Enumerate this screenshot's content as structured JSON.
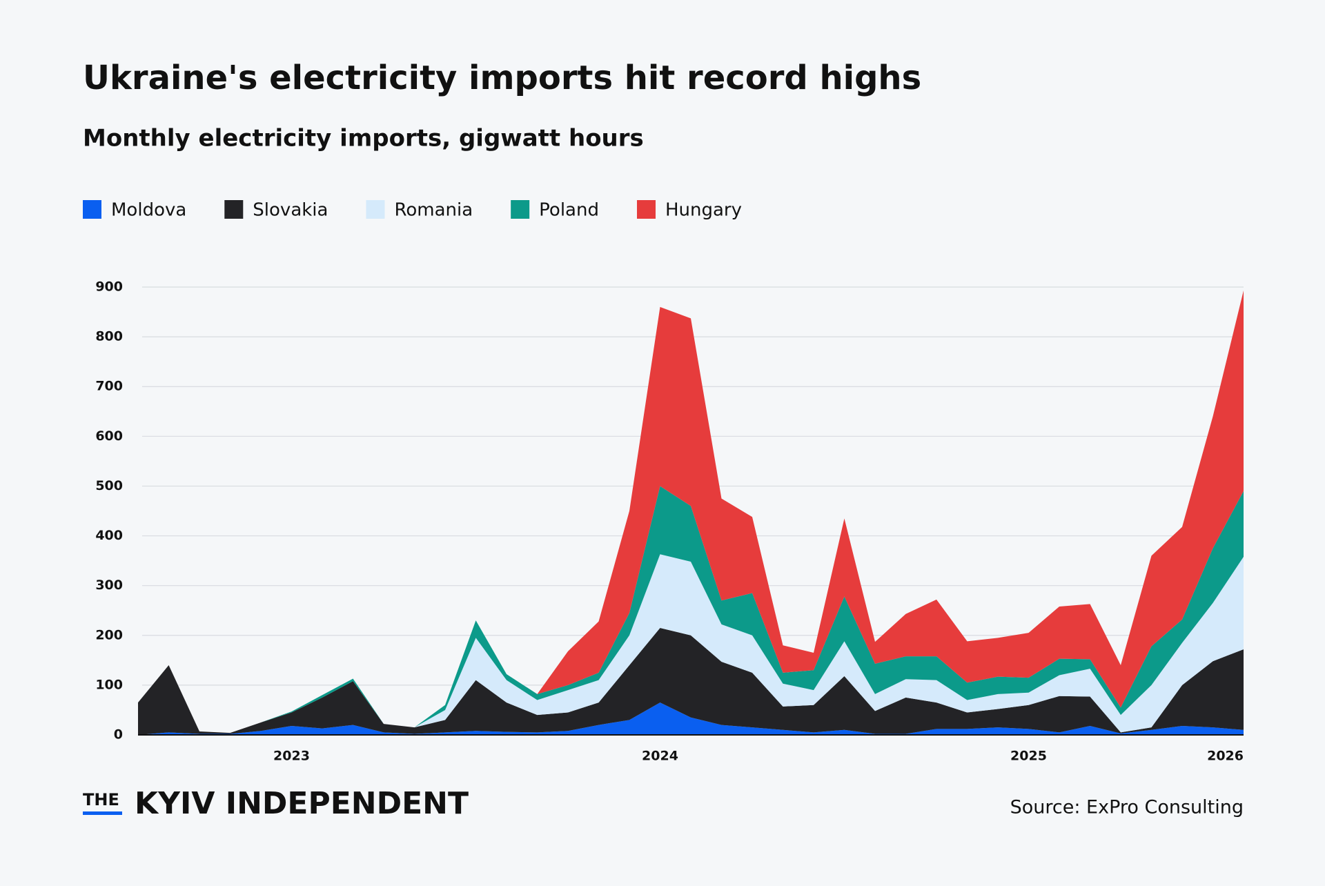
{
  "chart_data": {
    "type": "stacked_area",
    "title": "Ukraine's electricity imports hit record highs",
    "subtitle": "Monthly electricity imports, gigwatt hours",
    "categories": [
      null,
      null,
      null,
      null,
      null,
      "2023",
      null,
      null,
      null,
      null,
      null,
      null,
      null,
      null,
      null,
      null,
      null,
      "2024",
      null,
      null,
      null,
      null,
      null,
      null,
      null,
      null,
      null,
      null,
      null,
      "2025",
      null,
      null,
      null,
      null,
      null,
      null,
      "2026"
    ],
    "series": [
      {
        "name": "Moldova",
        "color": "#0a5ff0",
        "values": [
          0,
          5,
          2,
          2,
          8,
          18,
          13,
          20,
          5,
          2,
          5,
          8,
          6,
          5,
          8,
          20,
          30,
          65,
          35,
          20,
          15,
          10,
          5,
          10,
          2,
          2,
          12,
          12,
          15,
          12,
          5,
          18,
          3,
          10,
          18,
          15,
          10
        ]
      },
      {
        "name": "Slovakia",
        "color": "#232326",
        "values": [
          65,
          135,
          5,
          2,
          17,
          27,
          62,
          88,
          17,
          13,
          25,
          102,
          59,
          35,
          37,
          45,
          110,
          150,
          165,
          127,
          110,
          47,
          55,
          108,
          46,
          73,
          53,
          33,
          37,
          48,
          73,
          59,
          2,
          5,
          82,
          133,
          162
        ]
      },
      {
        "name": "Romania",
        "color": "#d5eafb",
        "values": [
          0,
          0,
          0,
          0,
          0,
          0,
          0,
          0,
          0,
          0,
          20,
          85,
          45,
          30,
          45,
          45,
          60,
          148,
          148,
          75,
          75,
          46,
          30,
          70,
          34,
          37,
          45,
          25,
          30,
          25,
          42,
          56,
          35,
          85,
          85,
          117,
          186
        ]
      },
      {
        "name": "Poland",
        "color": "#0c9a8a",
        "values": [
          0,
          0,
          0,
          0,
          0,
          2,
          5,
          5,
          0,
          0,
          10,
          35,
          12,
          12,
          10,
          15,
          45,
          137,
          112,
          48,
          85,
          22,
          40,
          90,
          61,
          46,
          48,
          35,
          35,
          30,
          33,
          19,
          15,
          78,
          47,
          110,
          132
        ]
      },
      {
        "name": "Hungary",
        "color": "#e63c3c",
        "values": [
          0,
          0,
          0,
          0,
          0,
          0,
          0,
          0,
          0,
          0,
          0,
          0,
          0,
          0,
          68,
          103,
          205,
          360,
          377,
          205,
          153,
          55,
          35,
          157,
          44,
          85,
          114,
          83,
          78,
          90,
          105,
          111,
          85,
          182,
          186,
          265,
          403
        ]
      }
    ],
    "ylim": [
      0,
      900
    ],
    "yticks": [
      0,
      100,
      200,
      300,
      400,
      500,
      600,
      700,
      800,
      900
    ],
    "grid": true,
    "legend": "top-left",
    "logo_prefix": "THE",
    "logo_name": "KYIV INDEPENDENT",
    "source": "Source: ExPro Consulting"
  }
}
